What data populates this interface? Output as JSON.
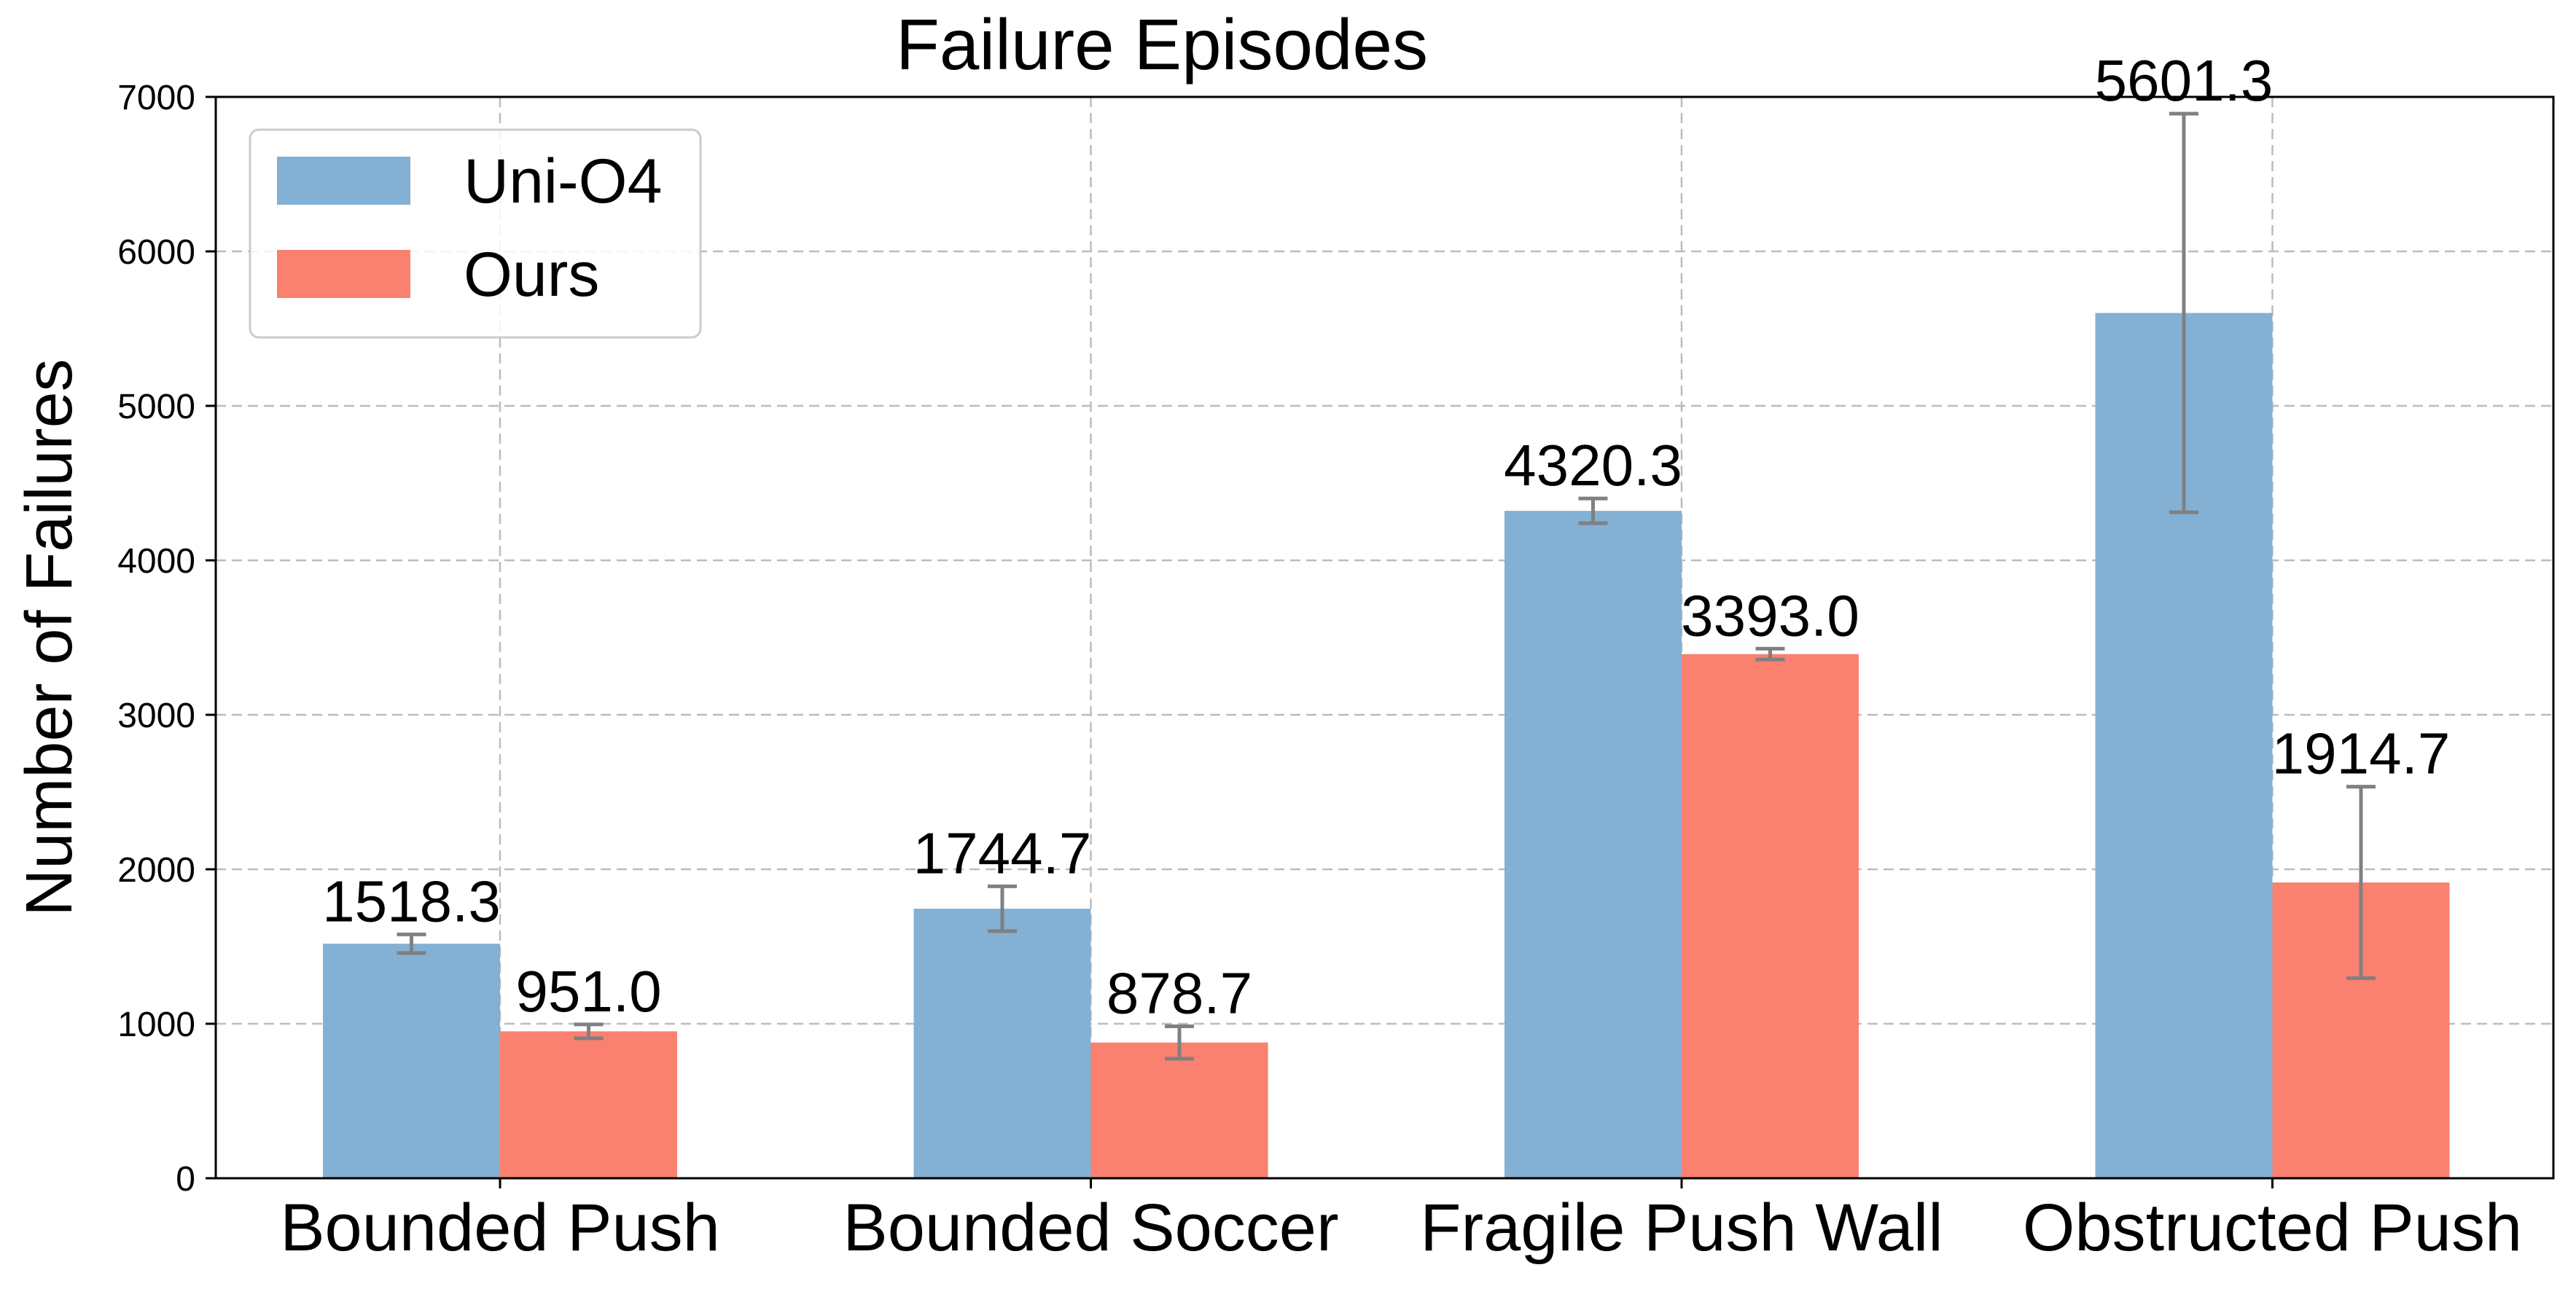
{
  "chart_data": {
    "type": "bar",
    "title": "Failure Episodes",
    "xlabel": "",
    "ylabel": "Number of Failures",
    "categories": [
      "Bounded Push",
      "Bounded Soccer",
      "Fragile Push Wall",
      "Obstructed Push"
    ],
    "series": [
      {
        "name": "Uni-O4",
        "color": "#84b0d3",
        "values": [
          1518.3,
          1744.7,
          4320.3,
          5601.3
        ],
        "value_labels": [
          "1518.3",
          "1744.7",
          "4320.3",
          "5601.3"
        ],
        "errors": [
          60,
          145,
          80,
          1290
        ]
      },
      {
        "name": "Ours",
        "color": "#fa8070",
        "values": [
          951.0,
          878.7,
          3393.0,
          1914.7
        ],
        "value_labels": [
          "951.0",
          "878.7",
          "3393.0",
          "1914.7"
        ],
        "errors": [
          45,
          105,
          35,
          620
        ]
      }
    ],
    "ylim": [
      0,
      7000
    ],
    "yticks": [
      0,
      1000,
      2000,
      3000,
      4000,
      5000,
      6000,
      7000
    ],
    "ytick_labels": [
      "0",
      "1000",
      "2000",
      "3000",
      "4000",
      "5000",
      "6000",
      "7000"
    ],
    "grid": true,
    "legend_position": "top-left",
    "errorbar_color": "#808080"
  }
}
